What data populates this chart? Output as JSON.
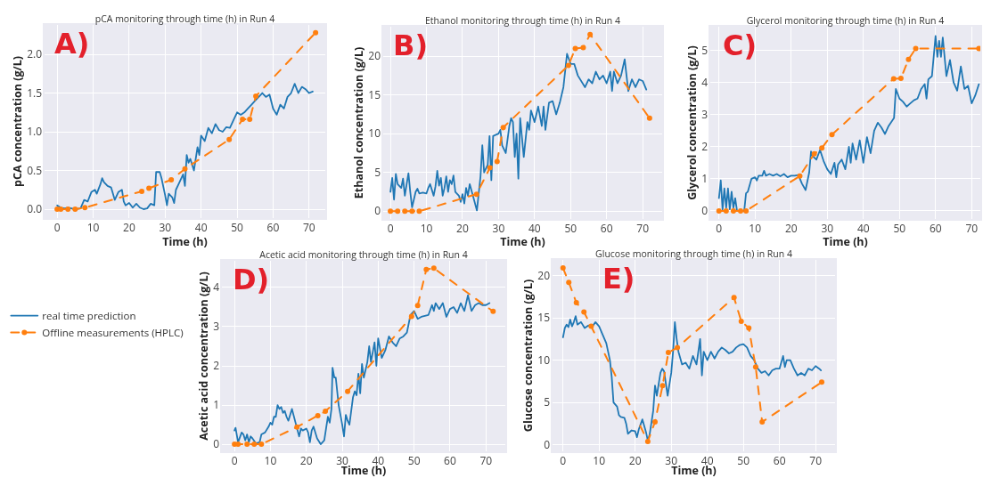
{
  "chart_data": [
    {
      "type": "line",
      "title": "pCA monitoring through time (h) in Run 4",
      "xlabel": "Time (h)",
      "ylabel": "pCA concentration (g/L)",
      "annotations": [
        "A)"
      ],
      "xlim": [
        -3.5,
        74.5
      ],
      "ylim": [
        -0.115,
        2.38
      ],
      "xticks": [
        0,
        10,
        20,
        30,
        40,
        50,
        60,
        70
      ],
      "yticks": [
        {
          "value": 0,
          "label": "0.0"
        },
        {
          "value": 0.5,
          "label": "0.5"
        },
        {
          "value": 1,
          "label": "1.0"
        },
        {
          "value": 1.5,
          "label": "1.5"
        },
        {
          "value": 2,
          "label": "2.0"
        }
      ],
      "grid": true,
      "legend": false,
      "series": [
        {
          "color": "#1f77b4",
          "line_style": "solid",
          "marker": "none",
          "x": [
            0,
            1,
            2,
            3,
            5,
            6.5,
            7.5,
            8.5,
            9.5,
            10.5,
            11,
            12,
            12.5,
            13,
            14,
            15,
            15.5,
            16,
            17,
            18,
            18.5,
            19,
            20,
            21,
            22,
            23,
            24,
            25,
            26,
            27,
            27.5,
            28.5,
            29,
            30,
            30.5,
            31,
            32,
            32.5,
            33,
            34,
            35,
            35.5,
            36,
            36.5,
            37,
            38,
            39,
            39.5,
            40,
            41,
            42,
            43,
            44,
            45,
            46,
            47,
            48,
            49,
            50,
            51,
            52,
            53,
            54,
            55,
            56,
            57,
            58,
            59,
            60,
            61,
            62,
            63,
            64,
            65,
            66,
            67,
            68,
            69,
            70,
            71
          ],
          "values": [
            0.05,
            0.02,
            0.01,
            0.02,
            0,
            0.01,
            0.12,
            0.1,
            0.22,
            0.25,
            0.2,
            0.32,
            0.4,
            0.35,
            0.3,
            0.28,
            0.2,
            0.12,
            0.22,
            0.25,
            0.1,
            0.05,
            0.08,
            0.02,
            0.07,
            0.02,
            0,
            0.01,
            0.07,
            0.05,
            0.48,
            0.48,
            0.4,
            0.18,
            0.05,
            0.2,
            0.15,
            0.08,
            0.25,
            0.35,
            0.45,
            0.3,
            0.7,
            0.6,
            0.65,
            0.5,
            0.8,
            0.7,
            0.95,
            0.88,
            1.05,
            0.98,
            1.1,
            1.02,
            1,
            1.06,
            1.05,
            1.15,
            1.25,
            1.22,
            1.25,
            1.3,
            1.35,
            1.4,
            1.45,
            1.5,
            1.45,
            1.48,
            1.3,
            1.22,
            1.35,
            1.3,
            1.45,
            1.5,
            1.62,
            1.5,
            1.58,
            1.55,
            1.5,
            1.52
          ]
        },
        {
          "color": "#ff7f0e",
          "line_style": "dashed",
          "marker": "circle",
          "x": [
            0,
            1,
            3,
            5,
            7.7,
            23.5,
            25.5,
            31.7,
            35.5,
            47.8,
            51.5,
            53.5,
            55.2,
            71.8
          ],
          "values": [
            0,
            0,
            0,
            0,
            0.02,
            0.23,
            0.27,
            0.38,
            0.52,
            0.9,
            1.16,
            1.16,
            1.46,
            2.28
          ]
        }
      ]
    },
    {
      "type": "line",
      "title": "Ethanol monitoring through time (h) in Run 4",
      "xlabel": "Time (h)",
      "ylabel": "Ethanol concentration (g/L)",
      "annotations": [
        "B)"
      ],
      "xlim": [
        -2,
        75.4
      ],
      "ylim": [
        -1,
        23.8
      ],
      "xticks": [
        0,
        10,
        20,
        30,
        40,
        50,
        60,
        70
      ],
      "yticks": [
        0,
        5,
        10,
        15,
        20
      ],
      "grid": true,
      "legend": false,
      "series": [
        {
          "color": "#1f77b4",
          "line_style": "solid",
          "marker": "none",
          "x": [
            0,
            0.5,
            1,
            1.5,
            2,
            3,
            3.5,
            4,
            4.5,
            5,
            5.5,
            6,
            7,
            7.5,
            8,
            9,
            10,
            10.5,
            11,
            12,
            12.5,
            13,
            13.5,
            14,
            14.5,
            15,
            15.5,
            16,
            16.5,
            17,
            17.5,
            18,
            19,
            19.5,
            20,
            20.5,
            21,
            21.5,
            22,
            23,
            24,
            25,
            25.5,
            26,
            27,
            27.5,
            28,
            28.5,
            29,
            30,
            30.5,
            31,
            32,
            33,
            33.5,
            34,
            34.5,
            35,
            35.5,
            36,
            37,
            38,
            38.5,
            39,
            40,
            41,
            42,
            42.5,
            43,
            44,
            45,
            46,
            47,
            48,
            49,
            50,
            51,
            52,
            54,
            55,
            56,
            57,
            58,
            59,
            60,
            61,
            61.5,
            62,
            63,
            64,
            65,
            66,
            67,
            68,
            69,
            70,
            71
          ],
          "values": [
            2.5,
            4.3,
            1.5,
            4.8,
            3.5,
            3,
            4.2,
            2,
            3.5,
            4.9,
            2.5,
            0.5,
            2.5,
            2.9,
            2.3,
            2.4,
            2.3,
            3,
            3.5,
            2,
            3.2,
            5.2,
            3.3,
            4.3,
            2,
            3,
            4.5,
            2.5,
            4,
            3.5,
            4.6,
            2.5,
            2,
            1.2,
            2.2,
            1,
            3,
            2,
            3.5,
            1.8,
            0.1,
            4.5,
            8.5,
            5,
            6,
            9.7,
            4,
            9.7,
            9.8,
            10,
            10.5,
            8.5,
            7.5,
            11,
            12,
            11.5,
            7,
            10,
            4.2,
            12,
            7,
            11.5,
            10.5,
            13,
            11.5,
            13.5,
            11,
            13.5,
            10.5,
            14,
            14.2,
            12.5,
            14,
            16,
            20.3,
            19,
            19,
            17.5,
            16,
            17,
            16.5,
            18,
            17,
            17.5,
            16.5,
            18,
            15.5,
            18,
            16.5,
            17.5,
            19.6,
            15.5,
            17,
            16,
            17,
            16.8,
            15.7
          ]
        },
        {
          "color": "#ff7f0e",
          "line_style": "dashed",
          "marker": "circle",
          "x": [
            0,
            2,
            4,
            6,
            8,
            23.9,
            27.6,
            29.6,
            31.3,
            49.4,
            51.3,
            53.5,
            55.4,
            71.9
          ],
          "values": [
            0,
            0,
            0,
            0,
            0,
            2.2,
            5.6,
            6.4,
            10.8,
            18.8,
            21,
            21.1,
            22.8,
            12
          ]
        }
      ]
    },
    {
      "type": "line",
      "title": "Glycerol monitoring through time (h) in Run 4",
      "xlabel": "Time (h)",
      "ylabel": "Glycerol concentration (g/L)",
      "annotations": [
        "C)"
      ],
      "xlim": [
        -2.4,
        72.4
      ],
      "ylim": [
        -0.25,
        5.74
      ],
      "xticks": [
        0,
        10,
        20,
        30,
        40,
        50,
        60,
        70
      ],
      "yticks": [
        0,
        1,
        2,
        3,
        4,
        5
      ],
      "grid": true,
      "legend": false,
      "series": [
        {
          "color": "#1f77b4",
          "line_style": "solid",
          "marker": "none",
          "x": [
            0,
            0.5,
            1,
            1.5,
            2,
            2.5,
            3,
            3.5,
            4,
            4.5,
            5,
            6,
            7,
            7.5,
            8,
            9,
            10,
            10.5,
            11,
            12,
            12.5,
            13,
            14,
            15,
            16,
            17,
            18,
            19,
            20,
            21,
            22,
            23,
            24,
            25,
            25.5,
            26,
            27,
            28,
            29,
            30,
            31,
            32,
            32.5,
            33,
            34,
            35,
            36,
            36.5,
            37,
            38,
            39,
            40,
            41,
            42,
            43,
            44,
            45,
            46,
            47,
            48.5,
            49,
            50,
            51,
            52,
            53,
            54,
            55,
            56,
            57,
            57.5,
            58,
            59,
            60,
            60.5,
            61,
            61.5,
            62,
            63,
            64,
            65,
            66,
            67,
            68,
            69,
            70,
            71,
            72
          ],
          "values": [
            0.4,
            0.95,
            0.05,
            0.7,
            0.1,
            0.7,
            0.05,
            0.6,
            0.1,
            0.4,
            0,
            0,
            0,
            0.55,
            0.6,
            1,
            1.05,
            0.95,
            1.1,
            1.1,
            1.25,
            1.1,
            1.15,
            1.1,
            1.15,
            1.08,
            1.15,
            1.05,
            1.1,
            1.1,
            1.12,
            0.85,
            0.65,
            1.2,
            1.85,
            1.7,
            1.6,
            1.9,
            1.55,
            1.3,
            1.15,
            1.5,
            1.05,
            1.45,
            1.6,
            1.3,
            2,
            1.5,
            2.1,
            1.6,
            2.2,
            1.5,
            2.3,
            1.8,
            2.5,
            2.75,
            2.6,
            2.4,
            2.65,
            2.9,
            3.8,
            3.5,
            3.4,
            3.25,
            3.35,
            3.45,
            3.5,
            3.8,
            3.95,
            3.5,
            4.1,
            4.2,
            5.45,
            4.8,
            5.3,
            4.8,
            5.4,
            4.2,
            4.7,
            4,
            3.75,
            4.5,
            3.8,
            3.9,
            3.35,
            3.6,
            3.95
          ]
        },
        {
          "color": "#ff7f0e",
          "line_style": "dashed",
          "marker": "circle",
          "x": [
            0,
            2,
            4,
            6,
            7.5,
            22.4,
            26.4,
            28.5,
            31.3,
            48.4,
            50.4,
            52.5,
            54.5,
            72
          ],
          "values": [
            0,
            0,
            0,
            0,
            0,
            1.09,
            1.78,
            1.96,
            2.38,
            4.12,
            4.13,
            4.72,
            5.06,
            5.06
          ]
        }
      ]
    },
    {
      "type": "line",
      "title": "Acetic acid monitoring through time (h) in Run 4",
      "xlabel": "Time (h)",
      "ylabel": "Acetic acid concentration (g/L)",
      "annotations": [
        "D)"
      ],
      "xlim": [
        -3.5,
        75.4
      ],
      "ylim": [
        -0.18,
        4.68
      ],
      "xticks": [
        0,
        10,
        20,
        30,
        40,
        50,
        60,
        70
      ],
      "yticks": [
        0,
        1,
        2,
        3,
        4
      ],
      "grid": true,
      "legend": "left",
      "series": [
        {
          "name": "real time prediction",
          "color": "#1f77b4",
          "line_style": "solid",
          "marker": "none",
          "x": [
            0,
            0.3,
            1,
            2,
            2.5,
            3,
            3.5,
            4,
            4.5,
            5,
            6,
            7,
            7.5,
            8.5,
            9.5,
            10,
            10.5,
            11,
            11.5,
            12,
            12.5,
            13,
            13.5,
            14,
            14.5,
            15,
            16,
            17,
            18,
            18.5,
            19,
            20,
            20.5,
            21,
            21.5,
            22,
            23,
            24,
            25,
            25.5,
            26,
            26.5,
            27,
            27.3,
            27.8,
            28.2,
            29,
            30,
            30.5,
            31,
            31.5,
            32,
            33,
            33.5,
            34,
            34.5,
            35,
            35.5,
            36,
            37,
            37.5,
            38,
            39,
            39.5,
            40,
            41,
            42,
            43,
            44,
            45,
            46,
            47,
            48,
            49,
            50,
            51,
            52,
            54,
            55,
            55.5,
            56,
            57,
            58,
            59,
            60,
            61,
            62,
            63,
            64,
            65,
            66,
            67,
            68,
            69,
            70,
            71
          ],
          "values": [
            0.35,
            0.42,
            0.05,
            0.3,
            0.25,
            0.1,
            0.25,
            0.05,
            0.2,
            0.15,
            0.02,
            0.05,
            0.25,
            0.3,
            0.45,
            0.55,
            0.5,
            0.7,
            0.7,
            1,
            0.9,
            0.95,
            0.8,
            0.85,
            0.7,
            0.6,
            0.9,
            0.55,
            0.2,
            0.4,
            0.35,
            0.4,
            0.3,
            0.05,
            0.35,
            0.45,
            0.15,
            0,
            0.1,
            0.4,
            0.7,
            0.55,
            0.9,
            1.95,
            1.7,
            1.7,
            1,
            0.5,
            0.2,
            0.75,
            0.6,
            0.5,
            1.2,
            1.35,
            1.25,
            1.8,
            1.3,
            2.05,
            1.7,
            2.1,
            2.5,
            2.1,
            2.6,
            2,
            2.7,
            2.2,
            2.4,
            2.75,
            2.6,
            2.5,
            2.7,
            2.75,
            2.85,
            3.3,
            3.4,
            3.2,
            3.25,
            3.3,
            3.55,
            3.4,
            3.6,
            3.45,
            3.6,
            3.25,
            3.45,
            3.5,
            3.35,
            3.6,
            3.4,
            3.8,
            3.4,
            3.55,
            3.6,
            3.55,
            3.55,
            3.6
          ]
        },
        {
          "name": "Offline measurements (HPLC)",
          "color": "#ff7f0e",
          "line_style": "dashed",
          "marker": "circle",
          "x": [
            0,
            1,
            3.5,
            5.5,
            7.5,
            17.4,
            23.2,
            25.3,
            31.5,
            49.3,
            51,
            53.4,
            55.5,
            72
          ],
          "values": [
            0,
            0,
            0,
            0,
            0,
            0.44,
            0.73,
            0.84,
            1.35,
            3.26,
            3.54,
            4.46,
            4.49,
            3.39
          ]
        }
      ]
    },
    {
      "type": "line",
      "title": "Glucose monitoring through time (h) in Run 4",
      "xlabel": "Time (h)",
      "ylabel": "Glucose concentration (g/L)",
      "annotations": [
        "E)"
      ],
      "xlim": [
        -2.9,
        75.4
      ],
      "ylim": [
        -0.77,
        21.85
      ],
      "xticks": [
        0,
        10,
        20,
        30,
        40,
        50,
        60,
        70
      ],
      "yticks": [
        0,
        5,
        10,
        15,
        20
      ],
      "grid": true,
      "legend": false,
      "series": [
        {
          "color": "#1f77b4",
          "line_style": "solid",
          "marker": "none",
          "x": [
            0,
            0.5,
            1,
            1.5,
            2,
            2.5,
            3,
            3.5,
            4,
            5,
            6,
            7,
            8,
            9,
            10,
            11,
            12,
            12.5,
            13,
            13.5,
            14,
            15,
            15.5,
            16,
            17,
            17.5,
            18,
            19,
            20,
            20.5,
            21,
            22,
            23,
            23.5,
            24,
            25,
            25.5,
            26,
            27,
            27.5,
            28,
            29,
            30,
            30.5,
            31,
            31.5,
            32,
            33,
            34,
            35,
            36,
            37,
            38,
            38.5,
            39,
            40,
            41,
            42,
            43,
            44,
            45,
            46,
            47,
            48,
            49,
            50,
            51,
            52,
            53,
            54,
            55,
            56,
            57,
            58,
            59,
            60,
            61,
            61.5,
            62,
            63,
            64,
            65,
            66,
            67,
            68,
            69,
            70,
            71,
            71.5
          ],
          "values": [
            12.7,
            13.8,
            14.2,
            13.9,
            14.8,
            14,
            14.5,
            15.2,
            14.2,
            14.5,
            13.8,
            14.1,
            13.9,
            14.5,
            14,
            13,
            12,
            11,
            10,
            8,
            5,
            4.5,
            3.5,
            3.3,
            3.2,
            2.5,
            1.3,
            1.7,
            1.6,
            0.9,
            1.8,
            3,
            1.5,
            0.5,
            1.2,
            4,
            7,
            5.8,
            8.5,
            9,
            8.7,
            5.8,
            8.5,
            11,
            14.5,
            12.5,
            11,
            9.5,
            9.7,
            9,
            10.5,
            9.5,
            12.5,
            8.2,
            11,
            10,
            11,
            10.2,
            11,
            11.5,
            11.2,
            10.8,
            11,
            11.5,
            11.8,
            11.9,
            11.5,
            10.5,
            10,
            9,
            8.5,
            8.7,
            8.2,
            8.8,
            9,
            9,
            10.5,
            9.2,
            10,
            10,
            9,
            8.2,
            8.5,
            8.2,
            9,
            8.8,
            9.3,
            9,
            8.8
          ]
        },
        {
          "color": "#ff7f0e",
          "line_style": "dashed",
          "marker": "circle",
          "x": [
            0,
            1.6,
            3.7,
            5.8,
            7.8,
            23.5,
            25.5,
            27.6,
            29.2,
            31.7,
            47.4,
            49.4,
            51.5,
            53.4,
            55.2,
            71.7
          ],
          "values": [
            20.9,
            19.2,
            16.8,
            15.7,
            14,
            0.4,
            2.7,
            7,
            10.9,
            11.5,
            17.4,
            14.6,
            13.8,
            9.2,
            2.7,
            7.4
          ]
        }
      ]
    }
  ]
}
